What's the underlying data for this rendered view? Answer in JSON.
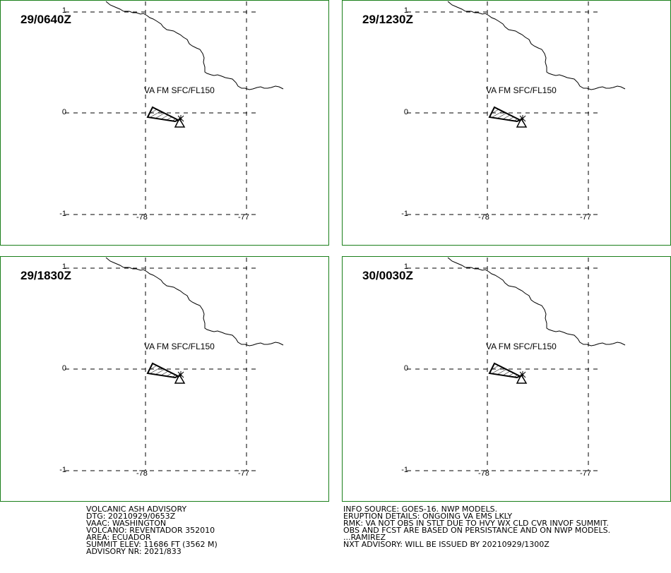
{
  "panels": [
    {
      "stamp": "29/0640Z",
      "label": "VA FM SFC/FL150"
    },
    {
      "stamp": "29/1230Z",
      "label": "VA FM SFC/FL150"
    },
    {
      "stamp": "29/1830Z",
      "label": "VA FM SFC/FL150"
    },
    {
      "stamp": "30/0030Z",
      "label": "VA FM SFC/FL150"
    }
  ],
  "lat_ticks": [
    "1",
    "0",
    "-1"
  ],
  "lon_ticks": [
    "-78",
    "-77"
  ],
  "advisory_left": [
    "VOLCANIC ASH ADVISORY",
    "DTG: 20210929/0653Z",
    "VAAC: WASHINGTON",
    "VOLCANO: REVENTADOR 352010",
    "AREA: ECUADOR",
    "SUMMIT ELEV: 11686 FT (3562 M)",
    "ADVISORY NR: 2021/833"
  ],
  "advisory_right": [
    "INFO SOURCE: GOES-16. NWP MODELS.",
    "ERUPTION DETAILS: ONGOING VA EMS LKLY",
    "RMK: VA NOT OBS IN STLT DUE TO HVY WX CLD CVR INVOF SUMMIT.",
    "OBS AND FCST ARE BASED ON PERSISTANCE AND ON NWP MODELS.",
    "...RAMIREZ",
    "NXT ADVISORY: WILL BE ISSUED BY 20210929/1300Z"
  ],
  "colors": {
    "frame": "#1a7f1a",
    "lines": "#000000"
  }
}
